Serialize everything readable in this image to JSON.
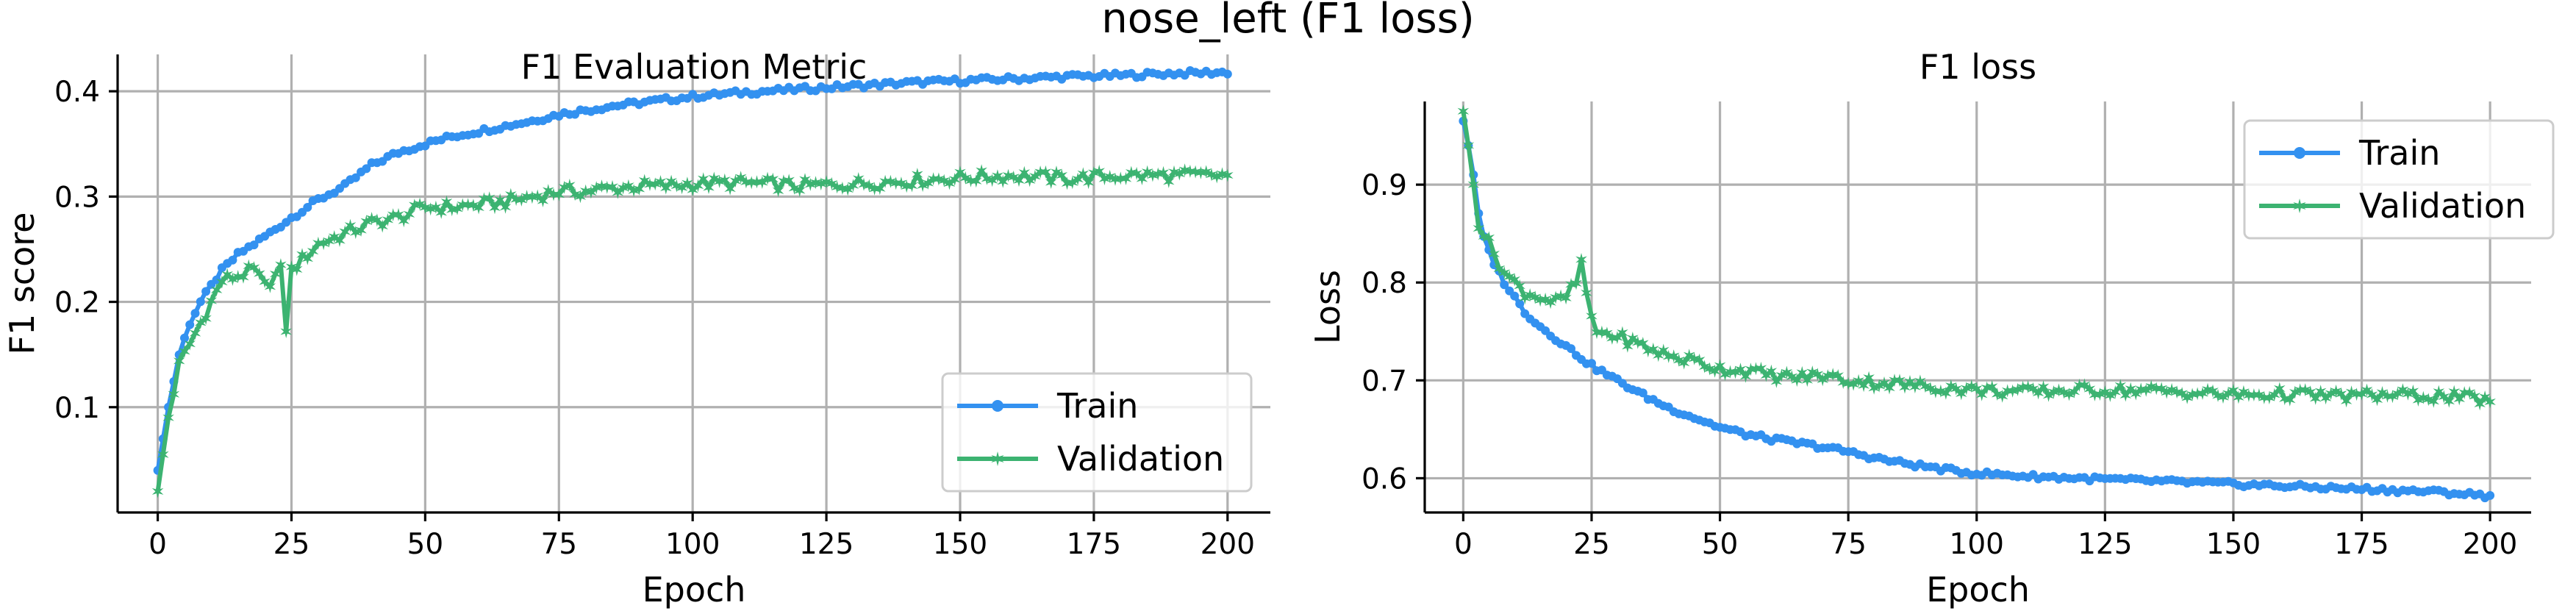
{
  "figure": {
    "suptitle": "nose_left (F1 loss)"
  },
  "colors": {
    "train": "#3391f0",
    "validation": "#3cb371",
    "grid": "#b0b0b0"
  },
  "chart_data": [
    {
      "type": "line",
      "title": "F1 Evaluation Metric",
      "xlabel": "Epoch",
      "ylabel": "F1 score",
      "xlim": [
        -7.5,
        208
      ],
      "ylim": [
        0.0,
        0.435
      ],
      "xticks": [
        0,
        25,
        50,
        75,
        100,
        125,
        150,
        175,
        200
      ],
      "yticks": [
        0.1,
        0.2,
        0.3,
        0.4
      ],
      "ytick_labels": [
        "0.1",
        "0.2",
        "0.3",
        "0.4"
      ],
      "grid": true,
      "legend": "lower-right",
      "legend_labels": [
        "Train",
        "Validation"
      ],
      "series": [
        {
          "name": "Train",
          "marker": "dot",
          "x": [
            0,
            2,
            4,
            6,
            8,
            10,
            12,
            15,
            18,
            20,
            25,
            30,
            35,
            40,
            45,
            50,
            55,
            60,
            65,
            70,
            75,
            80,
            85,
            90,
            95,
            100,
            110,
            120,
            130,
            140,
            150,
            160,
            170,
            180,
            190,
            200
          ],
          "values": [
            0.04,
            0.1,
            0.15,
            0.18,
            0.2,
            0.215,
            0.23,
            0.245,
            0.255,
            0.262,
            0.28,
            0.297,
            0.31,
            0.33,
            0.342,
            0.35,
            0.357,
            0.362,
            0.367,
            0.372,
            0.378,
            0.382,
            0.386,
            0.389,
            0.392,
            0.395,
            0.399,
            0.402,
            0.405,
            0.408,
            0.41,
            0.412,
            0.414,
            0.415,
            0.417,
            0.418
          ]
        },
        {
          "name": "Validation",
          "marker": "star",
          "x": [
            0,
            2,
            4,
            6,
            8,
            10,
            12,
            15,
            18,
            20,
            23,
            24,
            25,
            27,
            30,
            35,
            40,
            45,
            50,
            55,
            60,
            65,
            70,
            75,
            80,
            85,
            90,
            95,
            100,
            110,
            120,
            130,
            140,
            150,
            160,
            170,
            180,
            190,
            200
          ],
          "values": [
            0.02,
            0.09,
            0.14,
            0.16,
            0.18,
            0.2,
            0.22,
            0.225,
            0.23,
            0.215,
            0.23,
            0.175,
            0.23,
            0.24,
            0.255,
            0.265,
            0.275,
            0.28,
            0.29,
            0.29,
            0.292,
            0.295,
            0.3,
            0.305,
            0.305,
            0.308,
            0.31,
            0.31,
            0.312,
            0.313,
            0.31,
            0.312,
            0.315,
            0.318,
            0.32,
            0.317,
            0.32,
            0.32,
            0.32
          ]
        }
      ]
    },
    {
      "type": "line",
      "title": "F1 loss",
      "xlabel": "Epoch",
      "ylabel": "Loss",
      "xlim": [
        -7.5,
        208
      ],
      "ylim": [
        0.565,
        0.985
      ],
      "xticks": [
        0,
        25,
        50,
        75,
        100,
        125,
        150,
        175,
        200
      ],
      "yticks": [
        0.6,
        0.7,
        0.8,
        0.9
      ],
      "ytick_labels": [
        "0.6",
        "0.7",
        "0.8",
        "0.9"
      ],
      "grid": true,
      "legend": "upper-right",
      "legend_labels": [
        "Train",
        "Validation"
      ],
      "series": [
        {
          "name": "Train",
          "marker": "dot",
          "x": [
            0,
            1,
            2,
            3,
            4,
            6,
            8,
            10,
            12,
            15,
            18,
            20,
            25,
            30,
            35,
            40,
            45,
            50,
            55,
            60,
            65,
            70,
            75,
            80,
            85,
            90,
            95,
            100,
            110,
            120,
            130,
            140,
            150,
            160,
            170,
            180,
            190,
            200
          ],
          "values": [
            0.965,
            0.94,
            0.91,
            0.87,
            0.845,
            0.82,
            0.8,
            0.785,
            0.77,
            0.755,
            0.743,
            0.735,
            0.715,
            0.7,
            0.685,
            0.672,
            0.662,
            0.652,
            0.645,
            0.64,
            0.636,
            0.632,
            0.627,
            0.621,
            0.616,
            0.612,
            0.608,
            0.605,
            0.602,
            0.6,
            0.598,
            0.596,
            0.594,
            0.592,
            0.59,
            0.588,
            0.586,
            0.582
          ]
        },
        {
          "name": "Validation",
          "marker": "star",
          "x": [
            0,
            1,
            2,
            3,
            4,
            6,
            8,
            10,
            12,
            15,
            18,
            20,
            22,
            23,
            24,
            25,
            26,
            30,
            35,
            40,
            45,
            50,
            55,
            60,
            65,
            70,
            75,
            80,
            85,
            90,
            95,
            100,
            110,
            120,
            130,
            140,
            150,
            160,
            170,
            180,
            190,
            200
          ],
          "values": [
            0.975,
            0.94,
            0.9,
            0.86,
            0.85,
            0.83,
            0.81,
            0.8,
            0.79,
            0.785,
            0.78,
            0.785,
            0.8,
            0.82,
            0.79,
            0.76,
            0.75,
            0.745,
            0.735,
            0.725,
            0.72,
            0.712,
            0.71,
            0.705,
            0.703,
            0.705,
            0.7,
            0.698,
            0.696,
            0.694,
            0.692,
            0.69,
            0.688,
            0.69,
            0.69,
            0.688,
            0.685,
            0.686,
            0.684,
            0.685,
            0.684,
            0.68
          ]
        }
      ]
    }
  ]
}
